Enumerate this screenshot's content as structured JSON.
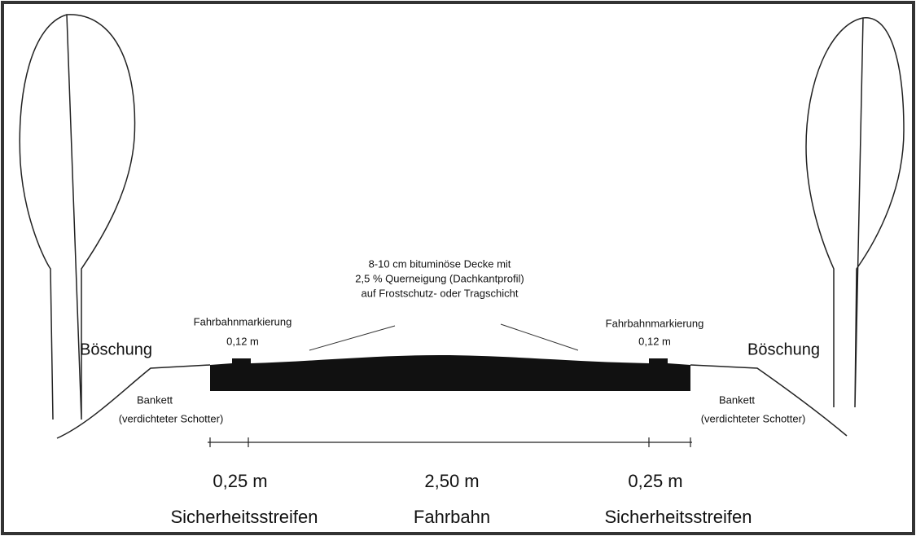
{
  "annotation": {
    "lines": [
      "8-10 cm bituminöse Decke mit",
      "2,5 % Querneigung (Dachkantprofil)",
      "auf Frostschutz- oder Tragschicht"
    ]
  },
  "left": {
    "slope": "Böschung",
    "marking": {
      "label": "Fahrbahnmarkierung",
      "width": "0,12 m"
    },
    "shoulder": {
      "label": "Bankett",
      "detail": "(verdichteter Schotter)"
    }
  },
  "right": {
    "slope": "Böschung",
    "marking": {
      "label": "Fahrbahnmarkierung",
      "width": "0,12 m"
    },
    "shoulder": {
      "label": "Bankett",
      "detail": "(verdichteter Schotter)"
    }
  },
  "dimensions": [
    {
      "width": "0,25 m",
      "label": "Sicherheitsstreifen"
    },
    {
      "width": "2,50 m",
      "label": "Fahrbahn"
    },
    {
      "width": "0,25 m",
      "label": "Sicherheitsstreifen"
    }
  ]
}
